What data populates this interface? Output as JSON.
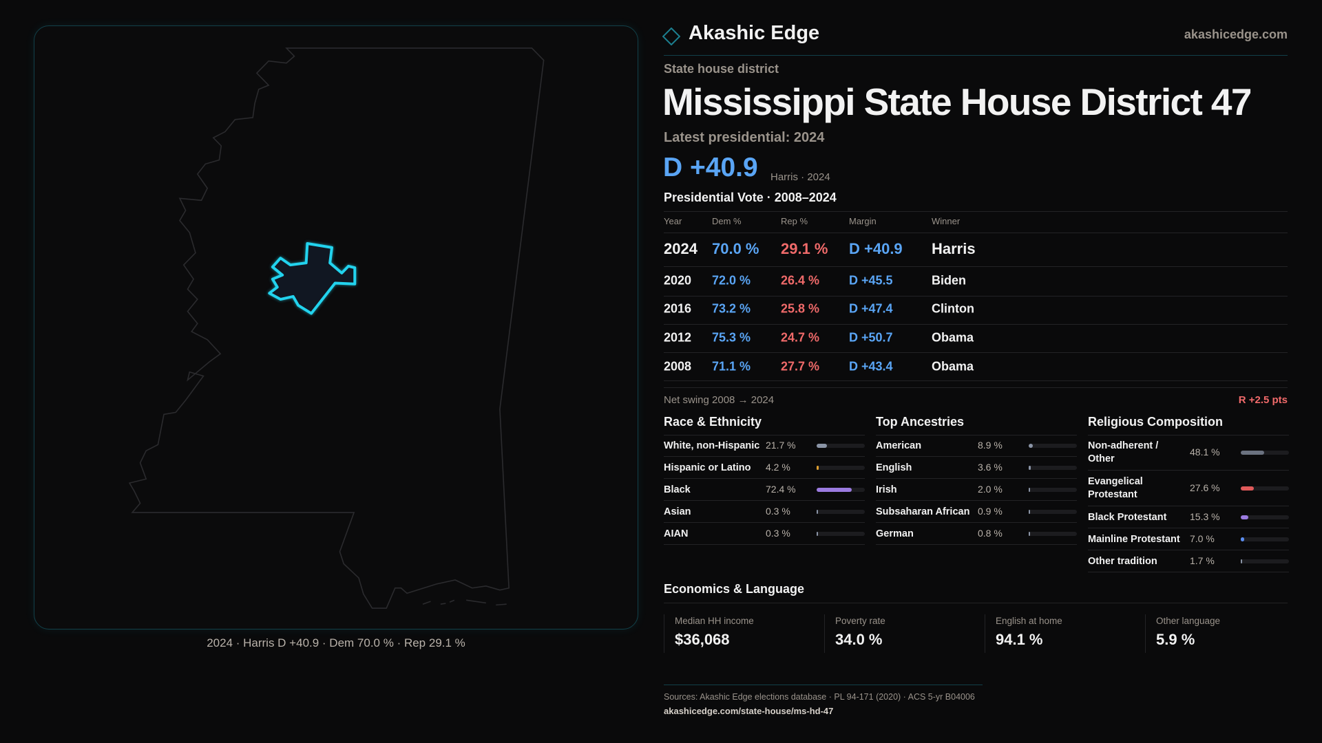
{
  "brand": {
    "name": "Akashic Edge",
    "site": "akashicedge.com",
    "accent": "#22d3ee"
  },
  "header": {
    "kicker": "State house district",
    "title": "Mississippi State House District 47",
    "latest_label": "Latest presidential: 2024",
    "margin": "D +40.9",
    "margin_sub": "Harris · 2024"
  },
  "votes": {
    "title": "Presidential Vote · 2008–2024",
    "columns": [
      "Year",
      "Dem %",
      "Rep %",
      "Margin",
      "Winner"
    ],
    "rows": [
      {
        "year": "2024",
        "dem": "70.0 %",
        "rep": "29.1 %",
        "margin": "D +40.9",
        "winner": "Harris"
      },
      {
        "year": "2020",
        "dem": "72.0 %",
        "rep": "26.4 %",
        "margin": "D +45.5",
        "winner": "Biden"
      },
      {
        "year": "2016",
        "dem": "73.2 %",
        "rep": "25.8 %",
        "margin": "D +47.4",
        "winner": "Clinton"
      },
      {
        "year": "2012",
        "dem": "75.3 %",
        "rep": "24.7 %",
        "margin": "D +50.7",
        "winner": "Obama"
      },
      {
        "year": "2008",
        "dem": "71.1 %",
        "rep": "27.7 %",
        "margin": "D +43.4",
        "winner": "Obama"
      }
    ],
    "swing_label": "Net swing 2008 → 2024",
    "swing_value": "R +2.5 pts"
  },
  "demographics": [
    {
      "title": "Race & Ethnicity",
      "items": [
        {
          "label": "White, non-Hispanic",
          "value": "21.7 %",
          "pct": 21.7,
          "color": "#8a94a6"
        },
        {
          "label": "Hispanic or Latino",
          "value": "4.2 %",
          "pct": 4.2,
          "color": "#e0a030"
        },
        {
          "label": "Black",
          "value": "72.4 %",
          "pct": 72.4,
          "color": "#9b7be0"
        },
        {
          "label": "Asian",
          "value": "0.3 %",
          "pct": 0.3,
          "color": "#8a94a6"
        },
        {
          "label": "AIAN",
          "value": "0.3 %",
          "pct": 0.3,
          "color": "#8a94a6"
        }
      ]
    },
    {
      "title": "Top Ancestries",
      "items": [
        {
          "label": "American",
          "value": "8.9 %",
          "pct": 8.9,
          "color": "#8a94a6"
        },
        {
          "label": "English",
          "value": "3.6 %",
          "pct": 3.6,
          "color": "#8a94a6"
        },
        {
          "label": "Irish",
          "value": "2.0 %",
          "pct": 2.0,
          "color": "#8a94a6"
        },
        {
          "label": "Subsaharan African",
          "value": "0.9 %",
          "pct": 0.9,
          "color": "#8a94a6"
        },
        {
          "label": "German",
          "value": "0.8 %",
          "pct": 0.8,
          "color": "#8a94a6"
        }
      ]
    },
    {
      "title": "Religious Composition",
      "items": [
        {
          "label": "Non-adherent / Other",
          "value": "48.1 %",
          "pct": 48.1,
          "color": "#6b7280"
        },
        {
          "label": "Evangelical Protestant",
          "value": "27.6 %",
          "pct": 27.6,
          "color": "#e05a5a"
        },
        {
          "label": "Black Protestant",
          "value": "15.3 %",
          "pct": 15.3,
          "color": "#9b7be0"
        },
        {
          "label": "Mainline Protestant",
          "value": "7.0 %",
          "pct": 7.0,
          "color": "#5b8def"
        },
        {
          "label": "Other tradition",
          "value": "1.7 %",
          "pct": 1.7,
          "color": "#8a94a6"
        }
      ]
    }
  ],
  "economics": {
    "title": "Economics & Language",
    "cards": [
      {
        "label": "Median HH income",
        "value": "$36,068"
      },
      {
        "label": "Poverty rate",
        "value": "34.0 %"
      },
      {
        "label": "English at home",
        "value": "94.1 %"
      },
      {
        "label": "Other language",
        "value": "5.9 %"
      }
    ]
  },
  "footer": {
    "sources": "Sources: Akashic Edge elections database · PL 94-171 (2020) · ACS 5-yr B04006",
    "url": "akashicedge.com/state-house/ms-hd-47"
  },
  "map": {
    "caption": "2024 · Harris D +40.9 · Dem 70.0 % · Rep 29.1 %",
    "highlight_color": "#22d3ee"
  }
}
